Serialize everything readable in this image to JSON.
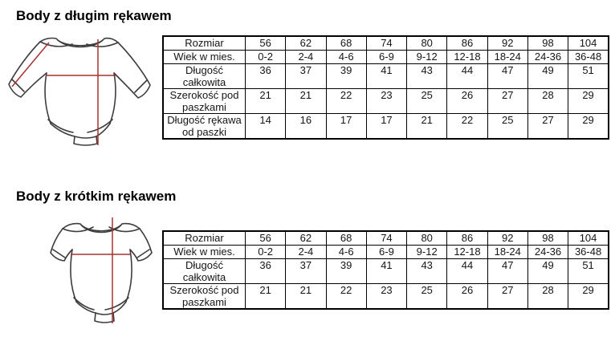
{
  "page": {
    "background": "#ffffff"
  },
  "colors": {
    "measurement_line": "#a63232",
    "drawing_outline": "#3d3d3d",
    "table_border": "#000000",
    "text": "#151515"
  },
  "sections": [
    {
      "title": "Body z długim rękawem",
      "drawing": "long-sleeve-baby-bodysuit-with-measurement-lines",
      "table": {
        "rows": [
          {
            "label": "Rozmiar",
            "values": [
              "56",
              "62",
              "68",
              "74",
              "80",
              "86",
              "92",
              "98",
              "104"
            ]
          },
          {
            "label": "Wiek w mies.",
            "values": [
              "0-2",
              "2-4",
              "4-6",
              "6-9",
              "9-12",
              "12-18",
              "18-24",
              "24-36",
              "36-48"
            ]
          },
          {
            "label": "Długość całkowita",
            "values": [
              "36",
              "37",
              "39",
              "41",
              "43",
              "44",
              "47",
              "49",
              "51"
            ]
          },
          {
            "label": "Szerokość pod paszkami",
            "values": [
              "21",
              "21",
              "22",
              "23",
              "25",
              "26",
              "27",
              "28",
              "29"
            ]
          },
          {
            "label": "Długość rękawa od paszki",
            "values": [
              "14",
              "16",
              "17",
              "17",
              "21",
              "22",
              "25",
              "27",
              "29"
            ]
          }
        ]
      }
    },
    {
      "title": "Body z krótkim rękawem",
      "drawing": "short-sleeve-baby-bodysuit-with-measurement-lines",
      "table": {
        "rows": [
          {
            "label": "Rozmiar",
            "values": [
              "56",
              "62",
              "68",
              "74",
              "80",
              "86",
              "92",
              "98",
              "104"
            ]
          },
          {
            "label": "Wiek w mies.",
            "values": [
              "0-2",
              "2-4",
              "4-6",
              "6-9",
              "9-12",
              "12-18",
              "18-24",
              "24-36",
              "36-48"
            ]
          },
          {
            "label": "Długość całkowita",
            "values": [
              "36",
              "37",
              "39",
              "41",
              "43",
              "44",
              "47",
              "49",
              "51"
            ]
          },
          {
            "label": "Szerokość pod paszkami",
            "values": [
              "21",
              "21",
              "22",
              "23",
              "25",
              "26",
              "27",
              "28",
              "29"
            ]
          }
        ]
      }
    }
  ]
}
